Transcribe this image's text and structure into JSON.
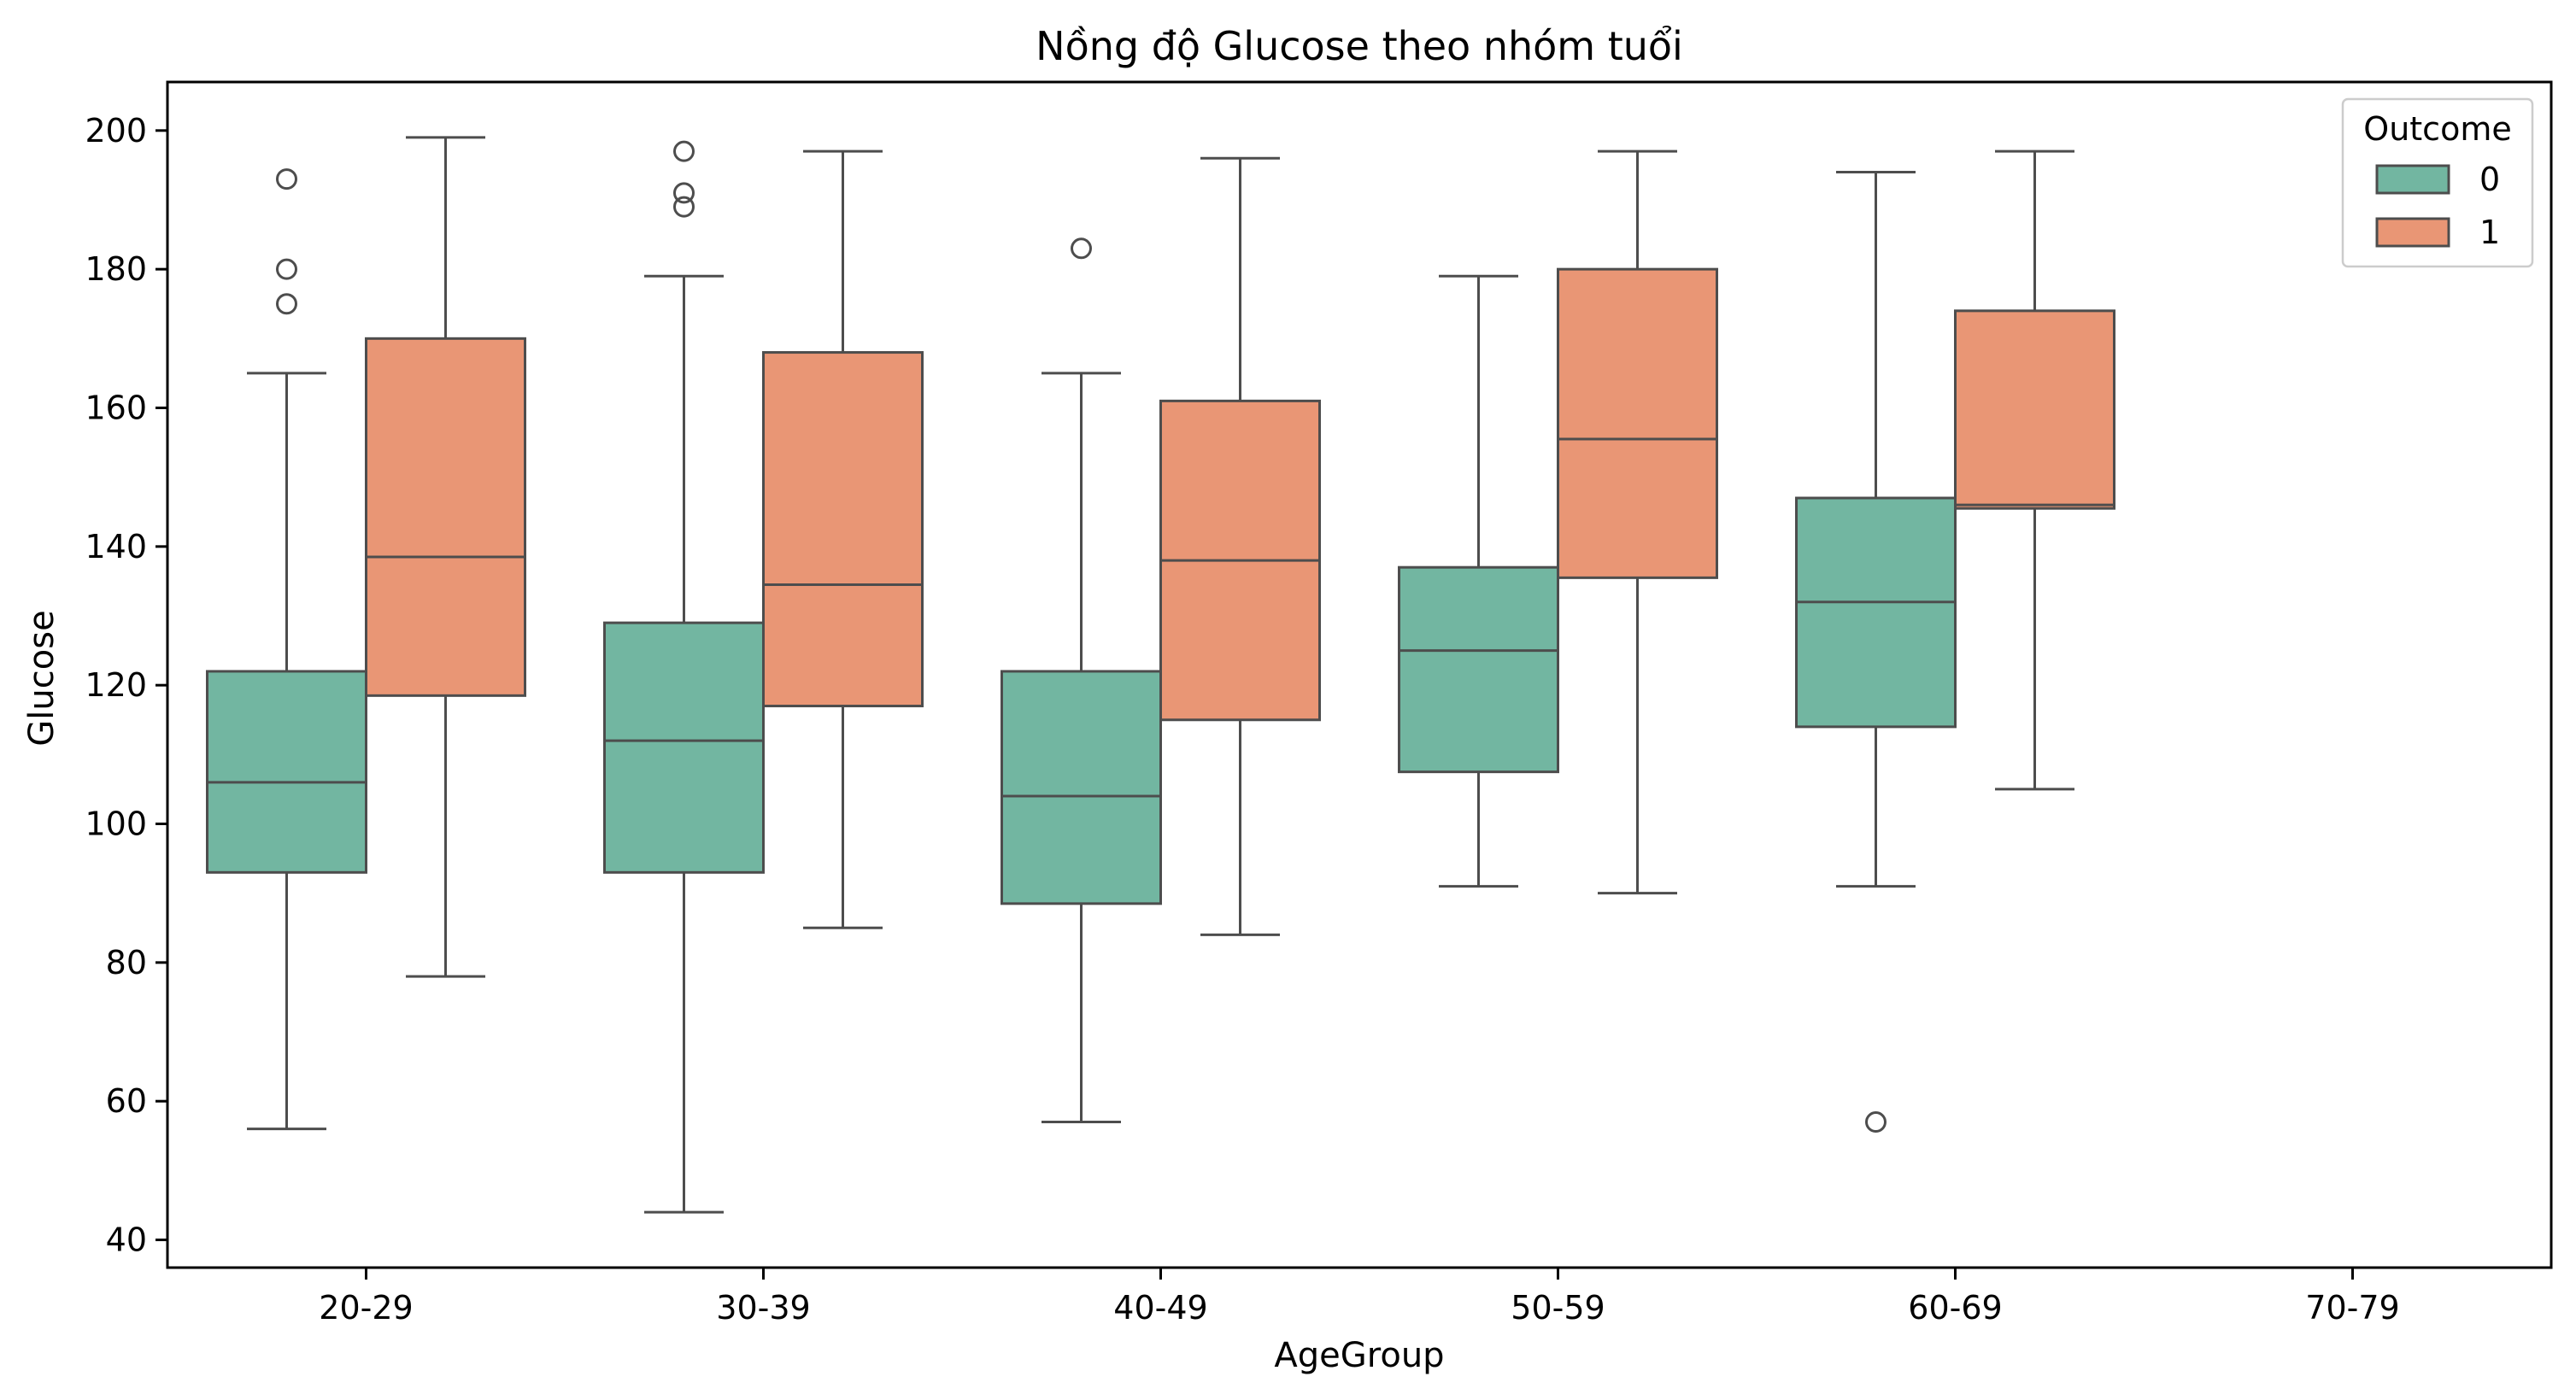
{
  "chart_data": {
    "type": "boxplot",
    "title": "Nồng độ Glucose theo nhóm tuổi",
    "xlabel": "AgeGroup",
    "ylabel": "Glucose",
    "ylim": [
      36,
      207
    ],
    "yticks": [
      40,
      60,
      80,
      100,
      120,
      140,
      160,
      180,
      200
    ],
    "categories": [
      "20-29",
      "30-39",
      "40-49",
      "50-59",
      "60-69",
      "70-79"
    ],
    "legend": {
      "title": "Outcome",
      "position": "top-right",
      "entries": [
        "0",
        "1"
      ]
    },
    "grid": false,
    "series": [
      {
        "name": "0",
        "color": "#72b6a1",
        "boxes": [
          {
            "category": "20-29",
            "whisker_low": 56,
            "q1": 93,
            "median": 106,
            "q3": 122,
            "whisker_high": 165,
            "outliers": [
              175,
              180,
              193
            ]
          },
          {
            "category": "30-39",
            "whisker_low": 44,
            "q1": 93,
            "median": 112,
            "q3": 129,
            "whisker_high": 179,
            "outliers": [
              189,
              191,
              197
            ]
          },
          {
            "category": "40-49",
            "whisker_low": 57,
            "q1": 88.5,
            "median": 104,
            "q3": 122,
            "whisker_high": 165,
            "outliers": [
              183
            ]
          },
          {
            "category": "50-59",
            "whisker_low": 91,
            "q1": 107.5,
            "median": 125,
            "q3": 137,
            "whisker_high": 179,
            "outliers": []
          },
          {
            "category": "60-69",
            "whisker_low": 91,
            "q1": 114,
            "median": 132,
            "q3": 147,
            "whisker_high": 194,
            "outliers": [
              57
            ]
          }
        ]
      },
      {
        "name": "1",
        "color": "#e99675",
        "boxes": [
          {
            "category": "20-29",
            "whisker_low": 78,
            "q1": 118.5,
            "median": 138.5,
            "q3": 170,
            "whisker_high": 199,
            "outliers": []
          },
          {
            "category": "30-39",
            "whisker_low": 85,
            "q1": 117,
            "median": 134.5,
            "q3": 168,
            "whisker_high": 197,
            "outliers": []
          },
          {
            "category": "40-49",
            "whisker_low": 84,
            "q1": 115,
            "median": 138,
            "q3": 161,
            "whisker_high": 196,
            "outliers": []
          },
          {
            "category": "50-59",
            "whisker_low": 90,
            "q1": 135.5,
            "median": 155.5,
            "q3": 180,
            "whisker_high": 197,
            "outliers": []
          },
          {
            "category": "60-69",
            "whisker_low": 105,
            "q1": 145.5,
            "median": 146,
            "q3": 174,
            "whisker_high": 197,
            "outliers": []
          }
        ]
      }
    ]
  }
}
